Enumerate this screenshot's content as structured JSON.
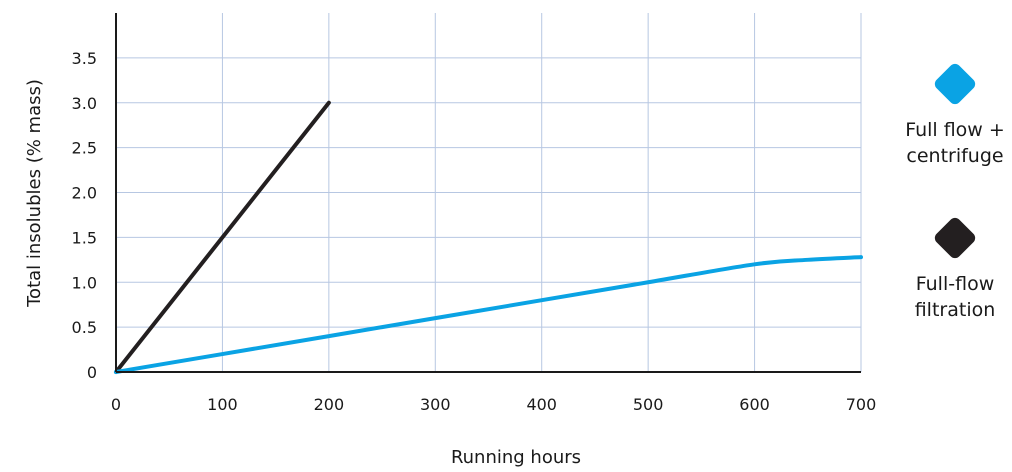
{
  "chart_data": {
    "type": "line",
    "xlabel": "Running hours",
    "ylabel": "Total insolubles (% mass)",
    "xlim": [
      0,
      700
    ],
    "ylim": [
      0,
      4.0
    ],
    "xticks": [
      0,
      100,
      200,
      300,
      400,
      500,
      600,
      700
    ],
    "yticks": [
      0,
      0.5,
      1.0,
      1.5,
      2.0,
      2.5,
      3.0,
      3.5
    ],
    "ytick_labels": [
      "0",
      "0.5",
      "1.0",
      "1.5",
      "2.0",
      "2.5",
      "3.0",
      "3.5"
    ],
    "grid": true,
    "legend_position": "right",
    "series": [
      {
        "name": "Full-flow filtration",
        "color": "#231f20",
        "x": [
          0,
          200
        ],
        "y": [
          0,
          3.0
        ]
      },
      {
        "name": "Full flow + centrifuge",
        "color": "#0aa3e4",
        "x": [
          0,
          100,
          200,
          300,
          400,
          500,
          600,
          650,
          700
        ],
        "y": [
          0,
          0.2,
          0.4,
          0.6,
          0.8,
          1.0,
          1.2,
          1.25,
          1.28
        ]
      }
    ]
  },
  "legend": [
    {
      "label_lines": [
        "Full flow +",
        "centrifuge"
      ],
      "color": "#0aa3e4"
    },
    {
      "label_lines": [
        "Full-flow",
        "filtration"
      ],
      "color": "#231f20"
    }
  ]
}
